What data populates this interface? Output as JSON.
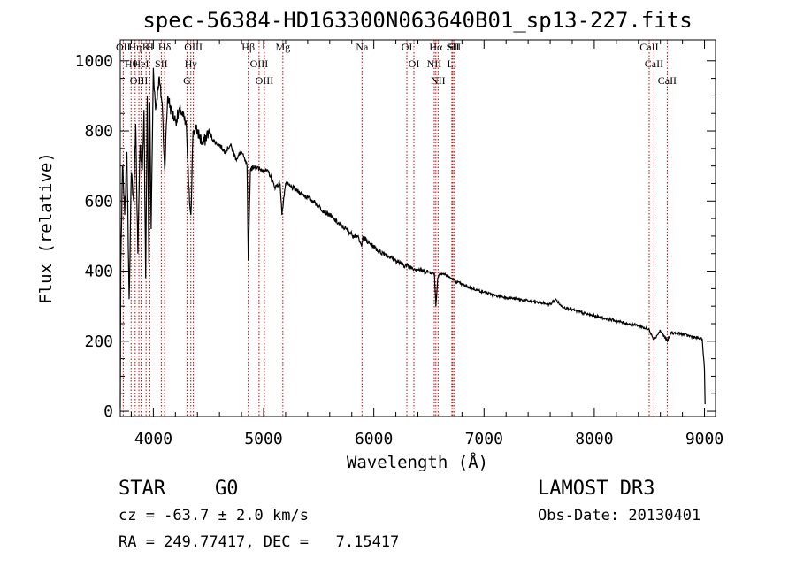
{
  "chart_data": {
    "type": "line",
    "title": "spec-56384-HD163300N063640B01_sp13-227.fits",
    "xlabel": "Wavelength (Å)",
    "ylabel": "Flux (relative)",
    "xlim": [
      3700,
      9100
    ],
    "ylim": [
      -15,
      1060
    ],
    "xticks": [
      4000,
      5000,
      6000,
      7000,
      8000,
      9000
    ],
    "xtick_labels": [
      "4000",
      "5000",
      "6000",
      "7000",
      "8000",
      "9000"
    ],
    "yticks": [
      0,
      200,
      400,
      600,
      800,
      1000
    ],
    "ytick_labels": [
      "0",
      "200",
      "400",
      "600",
      "800",
      "1000"
    ],
    "line_color": "#000000",
    "line_marker_color": "#c00000",
    "series": [
      {
        "name": "flux",
        "x": [
          3700,
          3705,
          3720,
          3740,
          3760,
          3780,
          3800,
          3820,
          3840,
          3860,
          3880,
          3900,
          3915,
          3930,
          3945,
          3960,
          3968,
          3980,
          4000,
          4020,
          4050,
          4080,
          4102,
          4130,
          4160,
          4200,
          4250,
          4300,
          4320,
          4340,
          4360,
          4400,
          4450,
          4500,
          4550,
          4600,
          4650,
          4700,
          4750,
          4800,
          4850,
          4861,
          4880,
          4920,
          4960,
          5000,
          5050,
          5100,
          5150,
          5167,
          5183,
          5200,
          5250,
          5300,
          5350,
          5400,
          5450,
          5500,
          5550,
          5600,
          5650,
          5700,
          5750,
          5800,
          5850,
          5890,
          5900,
          5950,
          6000,
          6050,
          6100,
          6150,
          6200,
          6250,
          6300,
          6350,
          6400,
          6450,
          6500,
          6550,
          6563,
          6580,
          6600,
          6650,
          6700,
          6750,
          6800,
          6850,
          6900,
          6950,
          7000,
          7100,
          7200,
          7300,
          7400,
          7500,
          7600,
          7650,
          7700,
          7800,
          7900,
          8000,
          8100,
          8200,
          8300,
          8400,
          8500,
          8542,
          8600,
          8662,
          8700,
          8800,
          8900,
          8980,
          9000,
          9005
        ],
        "y": [
          10,
          420,
          700,
          560,
          740,
          320,
          680,
          600,
          820,
          450,
          760,
          690,
          860,
          380,
          900,
          420,
          880,
          520,
          980,
          860,
          950,
          880,
          690,
          900,
          860,
          830,
          860,
          810,
          640,
          560,
          800,
          800,
          760,
          800,
          770,
          760,
          740,
          760,
          720,
          740,
          700,
          430,
          690,
          700,
          690,
          690,
          680,
          640,
          650,
          560,
          610,
          650,
          640,
          630,
          620,
          610,
          600,
          585,
          570,
          560,
          545,
          530,
          520,
          505,
          500,
          470,
          500,
          480,
          470,
          455,
          450,
          440,
          430,
          420,
          415,
          410,
          405,
          400,
          398,
          392,
          300,
          380,
          395,
          390,
          380,
          370,
          362,
          355,
          350,
          345,
          340,
          330,
          325,
          320,
          315,
          310,
          305,
          320,
          300,
          290,
          280,
          272,
          265,
          258,
          250,
          245,
          232,
          205,
          230,
          200,
          225,
          220,
          212,
          205,
          120,
          20
        ]
      }
    ],
    "spectral_lines": [
      {
        "label": "OII",
        "wavelength": 3727
      },
      {
        "label": "Hθ",
        "wavelength": 3798
      },
      {
        "label": "OIII",
        "wavelength": 3869
      },
      {
        "label": "Hη",
        "wavelength": 3835
      },
      {
        "label": "HeI",
        "wavelength": 3889
      },
      {
        "label": "K",
        "wavelength": 3934
      },
      {
        "label": "H",
        "wavelength": 3968
      },
      {
        "label": "Hδ",
        "wavelength": 4102
      },
      {
        "label": "SII",
        "wavelength": 4072
      },
      {
        "label": "OIII",
        "wavelength": 4363
      },
      {
        "label": "Hγ",
        "wavelength": 4340
      },
      {
        "label": "G",
        "wavelength": 4305
      },
      {
        "label": "Hβ",
        "wavelength": 4861
      },
      {
        "label": "OIII",
        "wavelength": 4959
      },
      {
        "label": "OIII",
        "wavelength": 5007
      },
      {
        "label": "Mg",
        "wavelength": 5175
      },
      {
        "label": "Na",
        "wavelength": 5893
      },
      {
        "label": "OI",
        "wavelength": 6300
      },
      {
        "label": "OI",
        "wavelength": 6364
      },
      {
        "label": "Hα",
        "wavelength": 6563
      },
      {
        "label": "NII",
        "wavelength": 6548
      },
      {
        "label": "NII",
        "wavelength": 6583
      },
      {
        "label": "SII",
        "wavelength": 6717
      },
      {
        "label": "Li",
        "wavelength": 6708
      },
      {
        "label": "SII",
        "wavelength": 6731
      },
      {
        "label": "CaII",
        "wavelength": 8498
      },
      {
        "label": "CaII",
        "wavelength": 8542
      },
      {
        "label": "CaII",
        "wavelength": 8662
      }
    ]
  },
  "info": {
    "class_label": "STAR",
    "subclass": "G0",
    "survey": "LAMOST DR3",
    "cz": "cz = -63.7 ± 2.0 km/s",
    "obs_date": "Obs-Date: 20130401",
    "radec": "RA = 249.77417, DEC =   7.15417"
  }
}
